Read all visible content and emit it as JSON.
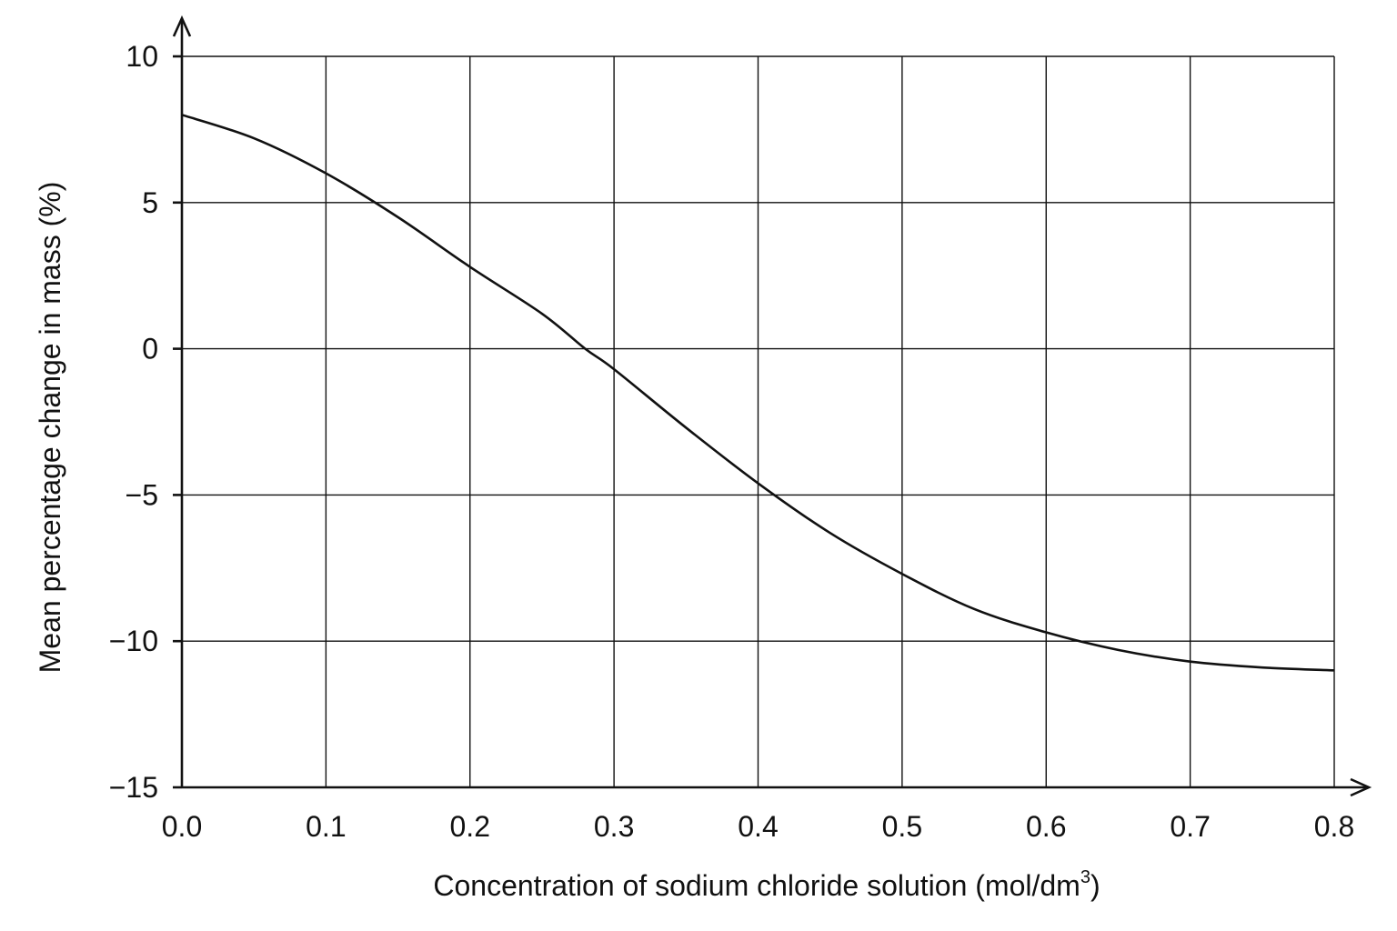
{
  "chart_data": {
    "type": "line",
    "title": "",
    "xlabel": "Concentration of sodium chloride solution (mol/dm",
    "xlabel_superscript": "3",
    "xlabel_suffix": ")",
    "ylabel": "Mean percentage change in mass (%)",
    "xlim": [
      0.0,
      0.8
    ],
    "ylim": [
      -15,
      10
    ],
    "x_ticks": [
      "0.0",
      "0.1",
      "0.2",
      "0.3",
      "0.4",
      "0.5",
      "0.6",
      "0.7",
      "0.8"
    ],
    "y_ticks": [
      "10",
      "5",
      "0",
      "−5",
      "−10",
      "−15"
    ],
    "grid": true,
    "series": [
      {
        "x": [
          0.0,
          0.05,
          0.1,
          0.15,
          0.2,
          0.25,
          0.28,
          0.3,
          0.35,
          0.4,
          0.45,
          0.5,
          0.55,
          0.6,
          0.65,
          0.7,
          0.75,
          0.8
        ],
        "y": [
          8.0,
          7.2,
          6.0,
          4.5,
          2.8,
          1.2,
          0.0,
          -0.7,
          -2.7,
          -4.6,
          -6.3,
          -7.7,
          -8.9,
          -9.7,
          -10.3,
          -10.7,
          -10.9,
          -11.0
        ]
      }
    ]
  }
}
